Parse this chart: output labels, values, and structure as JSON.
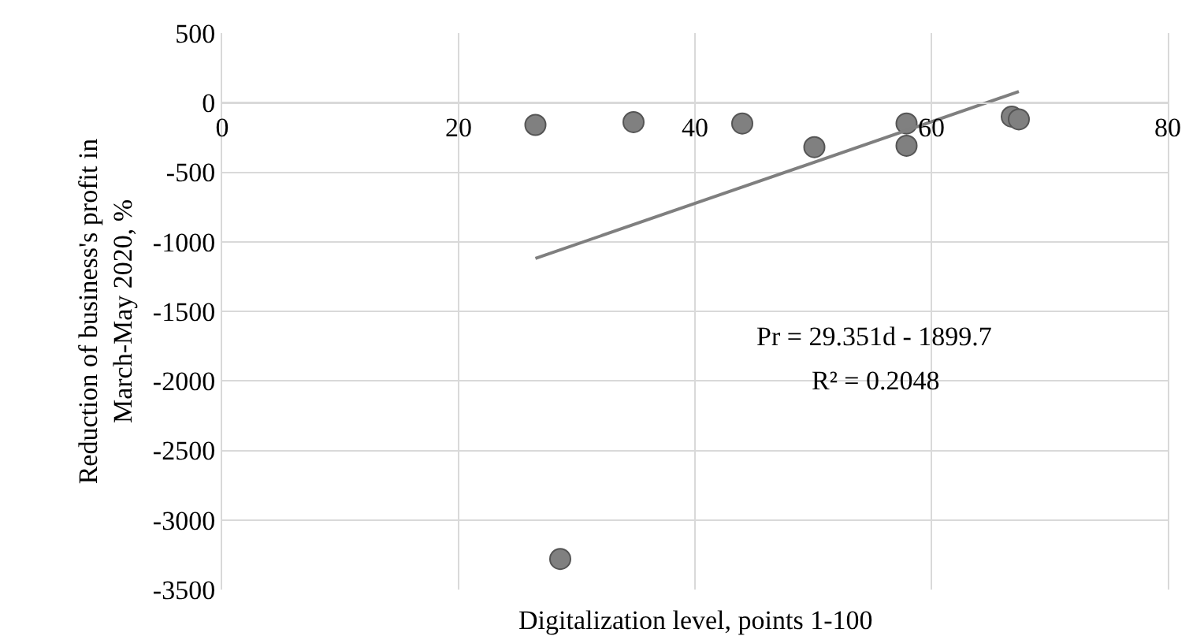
{
  "chart_data": {
    "type": "scatter",
    "xlabel": "Digitalization level, points 1-100",
    "ylabel": "Reduction of business's profit in March-May 2020, %",
    "xlim": [
      0,
      80
    ],
    "xticks": [
      0,
      20,
      40,
      60,
      80
    ],
    "ylim": [
      -3500,
      500
    ],
    "yticks": [
      -3500,
      -3000,
      -2500,
      -2000,
      -1500,
      -1000,
      -500,
      0,
      500
    ],
    "grid": true,
    "series": [
      {
        "color": "#808080",
        "marker": "circle",
        "x": [
          26.5,
          34.8,
          44.0,
          50.1,
          57.9,
          57.9,
          66.8,
          67.4,
          28.6
        ],
        "values": [
          -160,
          -140,
          -150,
          -320,
          -150,
          -310,
          -100,
          -120,
          -3280
        ]
      },
      {
        "type": "line",
        "color": "#7f7f7f",
        "x": [
          26.5,
          67.4
        ],
        "values": [
          -1120,
          80
        ],
        "line_style": "solid"
      }
    ],
    "annotations": [
      "Pr = 29.351d - 1899.7",
      "R² = 0.2048"
    ]
  }
}
